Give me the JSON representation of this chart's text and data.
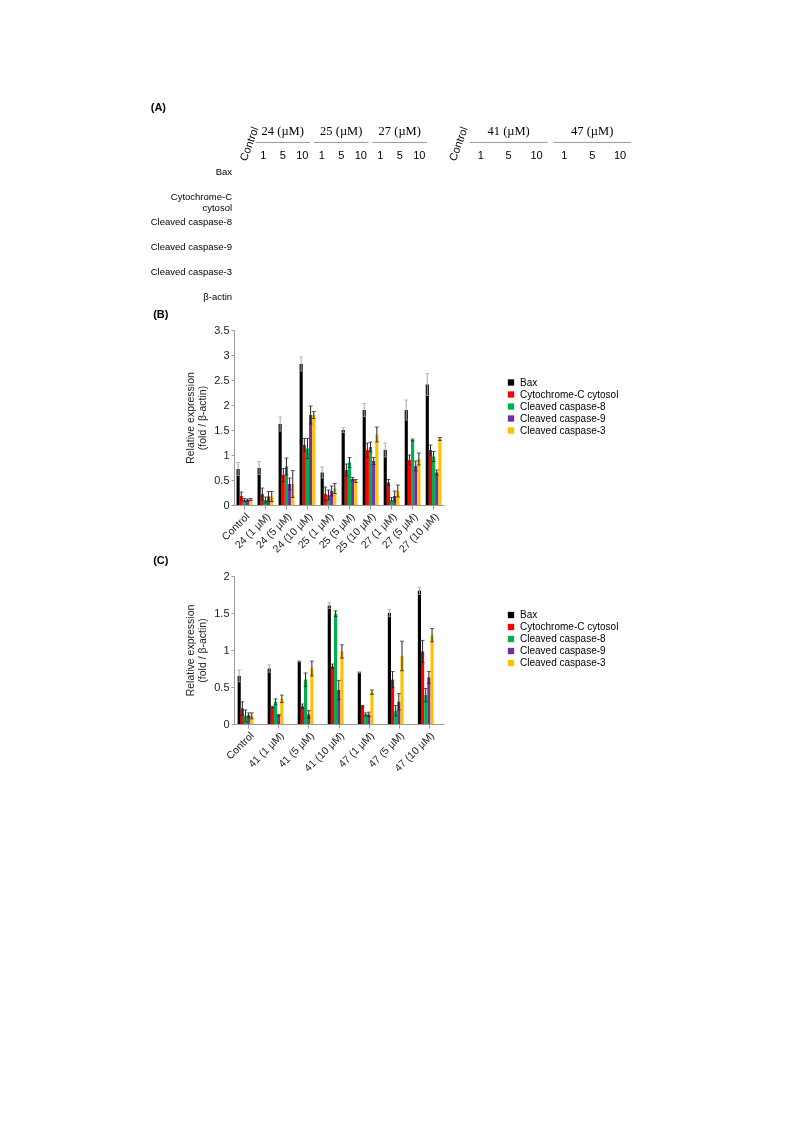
{
  "chart_data": [
    {
      "type": "other",
      "title": "(A)",
      "categories": [
        "Control",
        "1",
        "5",
        "10",
        "1",
        "5",
        "10",
        "1",
        "5",
        "10"
      ],
      "y_categories": [
        "Bax",
        "Cytochrome-C cytosol",
        "Cleaved caspase-8",
        "Cleaved caspase-9",
        "Cleaved caspase-3",
        "β-actin"
      ],
      "annotations": [
        "24 (µM)",
        "25 (µM)",
        "27 (µM)"
      ]
    },
    {
      "type": "other",
      "categories": [
        "Control",
        "1",
        "5",
        "10",
        "1",
        "5",
        "10"
      ],
      "annotations": [
        "41 (µM)",
        "47 (µM)"
      ]
    },
    {
      "type": "bar",
      "title": "(B)",
      "ylabel": "Relative expression\n(fold / β-actin)",
      "categories": [
        "Control",
        "24 (1 µM)",
        "24 (5 µM)",
        "24 (10 µM)",
        "25 (1 µM)",
        "25 (5 µM)",
        "25 (10 µM)",
        "27 (1 µM)",
        "27 (5 µM)",
        "27 (10 µM)"
      ],
      "ylim": [
        0,
        3.5
      ],
      "yticks": [
        0,
        0.5,
        1,
        1.5,
        2,
        2.5,
        3,
        3.5
      ],
      "legend": "right",
      "series": [
        {
          "name": "Bax",
          "color": "#000000",
          "values": [
            0.72,
            0.74,
            1.62,
            2.82,
            0.65,
            1.5,
            1.9,
            1.1,
            1.9,
            2.41
          ],
          "errors": [
            0.13,
            0.13,
            0.14,
            0.14,
            0.11,
            0.05,
            0.13,
            0.14,
            0.2,
            0.22
          ]
        },
        {
          "name": "Cytochrome-C cytosol",
          "color": "#ff0000",
          "values": [
            0.18,
            0.22,
            0.6,
            1.2,
            0.22,
            0.7,
            1.1,
            0.45,
            0.9,
            1.1
          ],
          "errors": [
            0.08,
            0.12,
            0.13,
            0.13,
            0.14,
            0.12,
            0.14,
            0.06,
            0.1,
            0.1
          ]
        },
        {
          "name": "Cleaved caspase-8",
          "color": "#00b050",
          "values": [
            0.1,
            0.1,
            0.77,
            1.13,
            0.2,
            0.85,
            1.16,
            0.08,
            1.3,
            0.97
          ],
          "errors": [
            0.03,
            0.06,
            0.17,
            0.2,
            0.1,
            0.1,
            0.1,
            [
              0.08,
              0.15
            ],
            0.02,
            0.1
          ]
        },
        {
          "name": "Cleaved caspase-9",
          "color": "#7030a0",
          "values": [
            0.1,
            0.17,
            0.42,
            1.8,
            0.28,
            0.52,
            0.88,
            0.18,
            0.78,
            0.65
          ],
          "errors": [
            0.02,
            0.1,
            0.12,
            0.18,
            0.1,
            0.03,
            0.07,
            0.1,
            0.1,
            0.05
          ]
        },
        {
          "name": "Cleaved caspase-3",
          "color": "#ffc000",
          "values": [
            0.11,
            0.17,
            0.42,
            1.8,
            0.33,
            0.48,
            1.41,
            0.28,
            0.92,
            1.32
          ],
          "errors": [
            0.02,
            0.1,
            0.27,
            0.07,
            0.1,
            0.03,
            0.15,
            0.12,
            0.12,
            0.03
          ]
        }
      ]
    },
    {
      "type": "bar",
      "title": "(C)",
      "ylabel": "Relative expression\n(fold / β-actin)",
      "categories": [
        "Control",
        "41 (1 µM)",
        "41 (5 µM)",
        "41 (10 µM)",
        "47 (1 µM)",
        "47 (5 µM)",
        "47 (10 µM)"
      ],
      "ylim": [
        0,
        2
      ],
      "yticks": [
        0,
        0.5,
        1,
        1.5,
        2
      ],
      "legend": "right",
      "series": [
        {
          "name": "Bax",
          "color": "#000000",
          "values": [
            0.65,
            0.75,
            0.85,
            1.6,
            0.7,
            1.5,
            1.8
          ],
          "errors": [
            0.08,
            0.05,
            0.01,
            0.04,
            0.01,
            0.05,
            0.05
          ]
        },
        {
          "name": "Cytochrome-C cytosol",
          "color": "#ff0000",
          "values": [
            0.21,
            0.23,
            0.24,
            0.78,
            0.24,
            0.6,
            0.98
          ],
          "errors": [
            0.09,
            0.01,
            0.03,
            0.03,
            0.01,
            0.11,
            0.15
          ]
        },
        {
          "name": "Cleaved caspase-8",
          "color": "#00b050",
          "values": [
            0.11,
            0.3,
            0.6,
            1.49,
            0.13,
            0.18,
            0.39
          ],
          "errors": [
            0.08,
            0.04,
            0.09,
            0.04,
            0.02,
            0.07,
            0.09
          ]
        },
        {
          "name": "Cleaved caspase-9",
          "color": "#7030a0",
          "values": [
            0.12,
            0.12,
            0.13,
            0.46,
            0.13,
            0.3,
            0.63
          ],
          "errors": [
            0.03,
            0.01,
            0.05,
            0.13,
            0.03,
            0.11,
            0.08
          ]
        },
        {
          "name": "Cleaved caspase-3",
          "color": "#ffc000",
          "values": [
            0.11,
            0.34,
            0.75,
            0.98,
            0.43,
            0.92,
            1.2
          ],
          "errors": [
            0.04,
            0.05,
            0.1,
            0.09,
            0.03,
            0.2,
            0.09
          ]
        }
      ]
    }
  ]
}
